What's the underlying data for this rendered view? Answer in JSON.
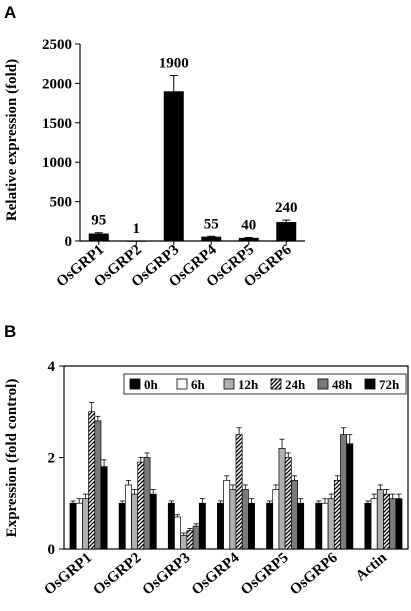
{
  "chart_data": [
    {
      "panel": "A",
      "type": "bar",
      "ylabel": "Relative expression (fold)",
      "ylim": [
        0,
        2500
      ],
      "yticks": [
        0,
        500,
        1000,
        1500,
        2000,
        2500
      ],
      "categories": [
        "OsGRP1",
        "OsGRP2",
        "OsGRP3",
        "OsGRP4",
        "OsGRP5",
        "OsGRP6"
      ],
      "values": [
        95,
        1,
        1900,
        55,
        40,
        240
      ],
      "errors": [
        10,
        0,
        200,
        5,
        4,
        25
      ],
      "data_labels": [
        "95",
        "1",
        "1900",
        "55",
        "40",
        "240"
      ],
      "bar_color": "#000000"
    },
    {
      "panel": "B",
      "type": "bar",
      "ylabel": "Expression (fold control)",
      "ylim": [
        0,
        4
      ],
      "yticks": [
        0,
        2,
        4
      ],
      "categories": [
        "OsGRP1",
        "OsGRP2",
        "OsGRP3",
        "OsGRP4",
        "OsGRP5",
        "OsGRP6",
        "Actin"
      ],
      "legend_position": "top",
      "series": [
        {
          "name": "0h",
          "fill": "#000000",
          "pattern": "solid",
          "values": [
            1.0,
            1.0,
            1.0,
            1.0,
            1.0,
            1.0,
            1.0
          ],
          "errors": [
            0.05,
            0.05,
            0.05,
            0.05,
            0.05,
            0.05,
            0.05
          ]
        },
        {
          "name": "6h",
          "fill": "#ffffff",
          "pattern": "solid",
          "values": [
            1.0,
            1.4,
            0.7,
            1.5,
            1.3,
            1.0,
            1.1
          ],
          "errors": [
            0.1,
            0.1,
            0.05,
            0.1,
            0.1,
            0.1,
            0.1
          ]
        },
        {
          "name": "12h",
          "fill": "#b0b0b0",
          "pattern": "solid",
          "values": [
            1.1,
            1.2,
            0.3,
            1.3,
            2.2,
            1.1,
            1.3
          ],
          "errors": [
            0.1,
            0.1,
            0.05,
            0.1,
            0.2,
            0.1,
            0.1
          ]
        },
        {
          "name": "24h",
          "fill": "#ffffff",
          "pattern": "hatch",
          "values": [
            3.0,
            1.9,
            0.4,
            2.5,
            2.0,
            1.5,
            1.2
          ],
          "errors": [
            0.2,
            0.1,
            0.05,
            0.15,
            0.1,
            0.1,
            0.1
          ]
        },
        {
          "name": "48h",
          "fill": "#7a7a7a",
          "pattern": "solid",
          "values": [
            2.8,
            2.0,
            0.5,
            1.3,
            1.5,
            2.5,
            1.1
          ],
          "errors": [
            0.1,
            0.1,
            0.05,
            0.1,
            0.1,
            0.15,
            0.1
          ]
        },
        {
          "name": "72h",
          "fill": "#000000",
          "pattern": "solid",
          "values": [
            1.8,
            1.2,
            1.0,
            1.0,
            1.0,
            2.3,
            1.1
          ],
          "errors": [
            0.15,
            0.1,
            0.1,
            0.1,
            0.1,
            0.2,
            0.1
          ]
        }
      ]
    }
  ]
}
